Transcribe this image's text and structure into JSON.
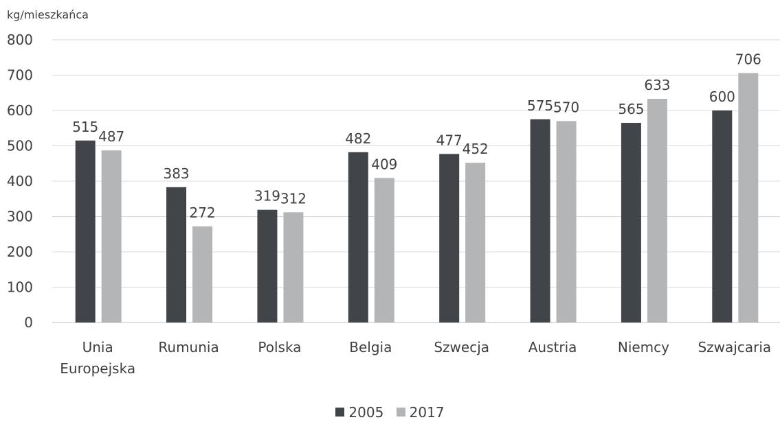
{
  "chart_data": {
    "type": "bar",
    "ylabel": "kg/mieszkańca",
    "ylim": [
      0,
      800
    ],
    "yticks": [
      "0",
      "100",
      "200",
      "300",
      "400",
      "500",
      "600",
      "700",
      "800"
    ],
    "categories": [
      [
        "Unia",
        "Europejska"
      ],
      [
        "Rumunia"
      ],
      [
        "Polska"
      ],
      [
        "Belgia"
      ],
      [
        "Szwecja"
      ],
      [
        "Austria"
      ],
      [
        "Niemcy"
      ],
      [
        "Szwajcaria"
      ]
    ],
    "series": [
      {
        "name": "2005",
        "color": "#414449",
        "values": [
          515,
          383,
          319,
          482,
          477,
          575,
          565,
          600
        ]
      },
      {
        "name": "2017",
        "color": "#b4b5b7",
        "values": [
          487,
          272,
          312,
          409,
          452,
          570,
          633,
          706
        ]
      }
    ],
    "grid": true,
    "legend": "bottom"
  }
}
